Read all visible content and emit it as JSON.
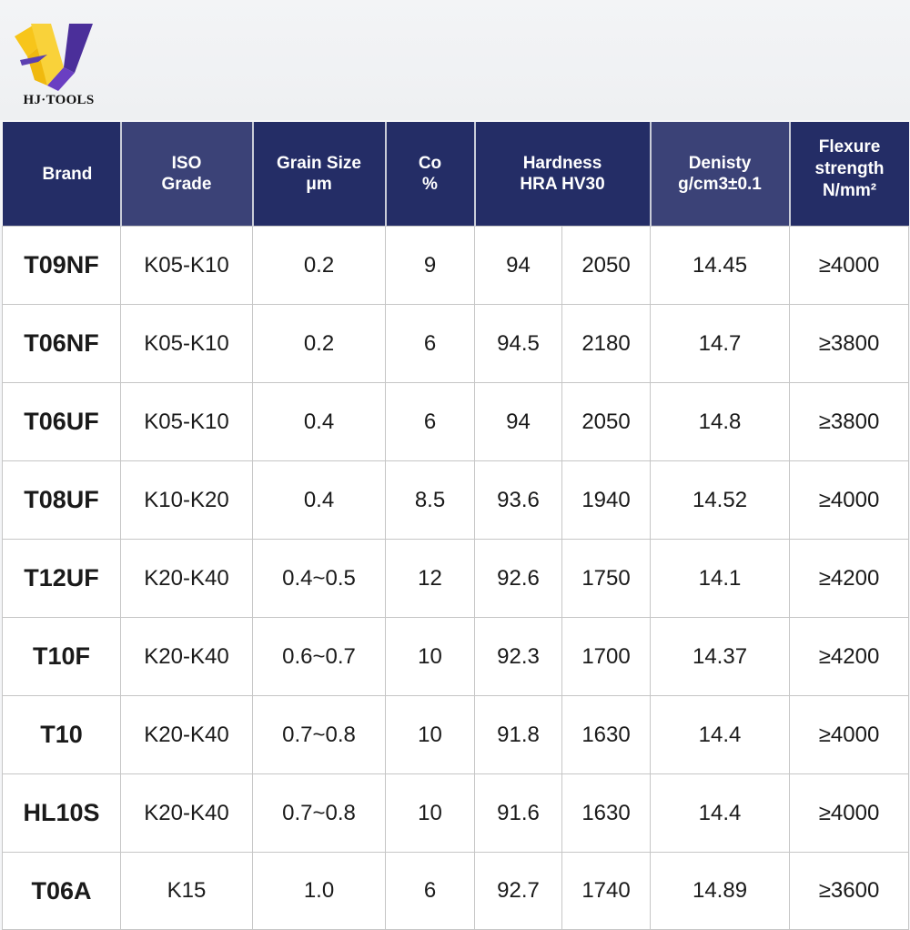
{
  "logo": {
    "text": "HJ·TOOLS",
    "colors": {
      "yellow": "#f7c51a",
      "purple": "#4b2f9a",
      "indigo": "#5b3fb0"
    }
  },
  "table": {
    "headers": {
      "brand": [
        "Brand"
      ],
      "iso": [
        "ISO",
        "Grade"
      ],
      "grain": [
        "Grain Size",
        "μm"
      ],
      "co": [
        "Co",
        "%"
      ],
      "hardness": [
        "Hardness",
        "HRA HV30"
      ],
      "density": [
        "Denisty",
        "g/cm3±0.1"
      ],
      "flexure": [
        "Flexure",
        "strength",
        "N/mm²"
      ]
    },
    "rows": [
      {
        "brand": "T09NF",
        "iso": "K05-K10",
        "grain": "0.2",
        "co": "9",
        "hra": "94",
        "hv30": "2050",
        "density": "14.45",
        "flexure": "≥4000"
      },
      {
        "brand": "T06NF",
        "iso": "K05-K10",
        "grain": "0.2",
        "co": "6",
        "hra": "94.5",
        "hv30": "2180",
        "density": "14.7",
        "flexure": "≥3800"
      },
      {
        "brand": "T06UF",
        "iso": "K05-K10",
        "grain": "0.4",
        "co": "6",
        "hra": "94",
        "hv30": "2050",
        "density": "14.8",
        "flexure": "≥3800"
      },
      {
        "brand": "T08UF",
        "iso": "K10-K20",
        "grain": "0.4",
        "co": "8.5",
        "hra": "93.6",
        "hv30": "1940",
        "density": "14.52",
        "flexure": "≥4000"
      },
      {
        "brand": "T12UF",
        "iso": "K20-K40",
        "grain": "0.4~0.5",
        "co": "12",
        "hra": "92.6",
        "hv30": "1750",
        "density": "14.1",
        "flexure": "≥4200"
      },
      {
        "brand": "T10F",
        "iso": "K20-K40",
        "grain": "0.6~0.7",
        "co": "10",
        "hra": "92.3",
        "hv30": "1700",
        "density": "14.37",
        "flexure": "≥4200"
      },
      {
        "brand": "T10",
        "iso": "K20-K40",
        "grain": "0.7~0.8",
        "co": "10",
        "hra": "91.8",
        "hv30": "1630",
        "density": "14.4",
        "flexure": "≥4000"
      },
      {
        "brand": "HL10S",
        "iso": "K20-K40",
        "grain": "0.7~0.8",
        "co": "10",
        "hra": "91.6",
        "hv30": "1630",
        "density": "14.4",
        "flexure": "≥4000"
      },
      {
        "brand": "T06A",
        "iso": "K15",
        "grain": "1.0",
        "co": "6",
        "hra": "92.7",
        "hv30": "1740",
        "density": "14.89",
        "flexure": "≥3600"
      }
    ]
  }
}
